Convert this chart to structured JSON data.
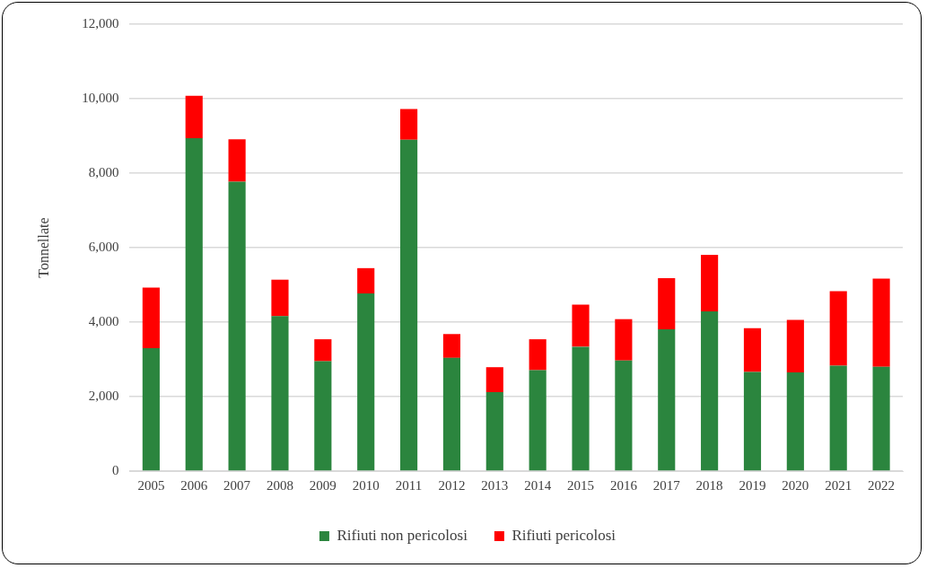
{
  "chart_data": {
    "type": "bar",
    "stacked": true,
    "ylabel": "Tonnellate",
    "categories": [
      "2005",
      "2006",
      "2007",
      "2008",
      "2009",
      "2010",
      "2011",
      "2012",
      "2013",
      "2014",
      "2015",
      "2016",
      "2017",
      "2018",
      "2019",
      "2020",
      "2021",
      "2022"
    ],
    "series": [
      {
        "name": "Rifiuti non pericolosi",
        "color": "#2b853e",
        "values": [
          3300,
          8940,
          7770,
          4160,
          2950,
          4770,
          8900,
          3040,
          2120,
          2710,
          3340,
          2970,
          3810,
          4290,
          2660,
          2650,
          2830,
          2800
        ]
      },
      {
        "name": "Rifiuti pericolosi",
        "color": "#ff0000",
        "values": [
          1630,
          1140,
          1140,
          980,
          590,
          680,
          820,
          640,
          670,
          830,
          1130,
          1110,
          1370,
          1520,
          1180,
          1410,
          2000,
          2370
        ]
      }
    ],
    "ylim": [
      0,
      12000
    ],
    "yticks": [
      {
        "value": 0,
        "label": "0"
      },
      {
        "value": 2000,
        "label": "2,000"
      },
      {
        "value": 4000,
        "label": "4,000"
      },
      {
        "value": 6000,
        "label": "6,000"
      },
      {
        "value": 8000,
        "label": "8,000"
      },
      {
        "value": 10000,
        "label": "10,000"
      },
      {
        "value": 12000,
        "label": "12,000"
      }
    ],
    "grid": "y",
    "legend": "bottom"
  }
}
